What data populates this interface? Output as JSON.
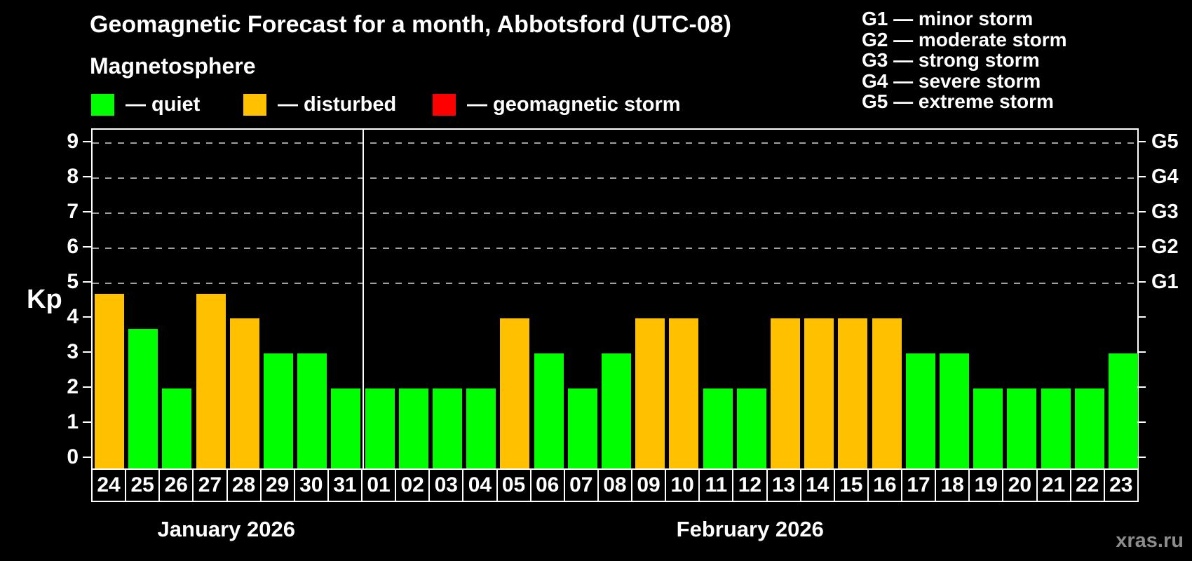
{
  "header": {
    "title": "Geomagnetic Forecast for a month, Abbotsford (UTC-08)",
    "subtitle": "Magnetosphere"
  },
  "legend": {
    "items": [
      {
        "key": "quiet",
        "label": "— quiet",
        "color": "#00ff00",
        "x": 130
      },
      {
        "key": "disturbed",
        "label": "— disturbed",
        "color": "#ffc000",
        "x": 347
      },
      {
        "key": "storm",
        "label": "— geomagnetic storm",
        "color": "#ff0000",
        "x": 617
      }
    ]
  },
  "g_scale_legend": {
    "items": [
      "G1 — minor storm",
      "G2 — moderate storm",
      "G3 — strong storm",
      "G4 — severe storm",
      "G5 — extreme storm"
    ]
  },
  "axes": {
    "y_title": "Kp",
    "y_ticks": [
      0,
      1,
      2,
      3,
      4,
      5,
      6,
      7,
      8,
      9
    ],
    "right_labels": [
      {
        "level": 5,
        "label": "G1"
      },
      {
        "level": 6,
        "label": "G2"
      },
      {
        "level": 7,
        "label": "G3"
      },
      {
        "level": 8,
        "label": "G4"
      },
      {
        "level": 9,
        "label": "G5"
      }
    ],
    "grid_levels": [
      5,
      6,
      7,
      8,
      9
    ]
  },
  "watermark": "xras.ru",
  "chart_data": {
    "type": "bar",
    "title": "Geomagnetic Forecast for a month, Abbotsford (UTC-08)",
    "xlabel": "",
    "ylabel": "Kp",
    "ylim": [
      0,
      9
    ],
    "categories": [
      "24",
      "25",
      "26",
      "27",
      "28",
      "29",
      "30",
      "31",
      "01",
      "02",
      "03",
      "04",
      "05",
      "06",
      "07",
      "08",
      "09",
      "10",
      "11",
      "12",
      "13",
      "14",
      "15",
      "16",
      "17",
      "18",
      "19",
      "20",
      "21",
      "22",
      "23"
    ],
    "values": [
      4.7,
      3.7,
      2,
      4.7,
      4,
      3,
      3,
      2,
      2,
      2,
      2,
      2,
      4,
      3,
      2,
      3,
      4,
      4,
      2,
      2,
      4,
      4,
      4,
      4,
      3,
      3,
      2,
      2,
      2,
      2,
      3
    ],
    "statuses": [
      "disturbed",
      "quiet",
      "quiet",
      "disturbed",
      "disturbed",
      "quiet",
      "quiet",
      "quiet",
      "quiet",
      "quiet",
      "quiet",
      "quiet",
      "disturbed",
      "quiet",
      "quiet",
      "quiet",
      "disturbed",
      "disturbed",
      "quiet",
      "quiet",
      "disturbed",
      "disturbed",
      "disturbed",
      "disturbed",
      "quiet",
      "quiet",
      "quiet",
      "quiet",
      "quiet",
      "quiet",
      "quiet"
    ],
    "month_groups": [
      {
        "label": "January 2026",
        "count": 8
      },
      {
        "label": "February 2026",
        "count": 23
      }
    ],
    "legend_note": "grid shown only at G-storm levels (Kp 5–9)"
  }
}
